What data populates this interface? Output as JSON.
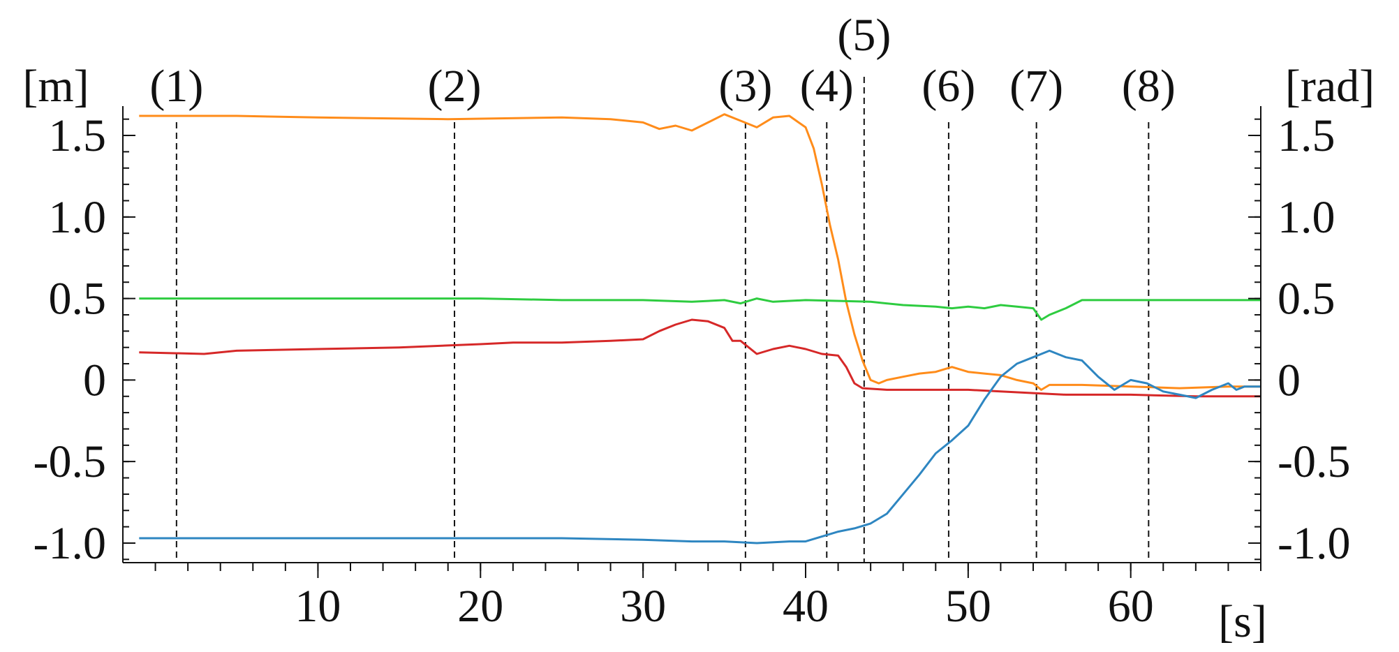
{
  "chart_data": {
    "type": "line",
    "left_axis_unit": "[m]",
    "right_axis_unit": "[rad]",
    "x_unit": "[s]",
    "xlim": [
      -2,
      68
    ],
    "ylim": [
      -1.12,
      1.68
    ],
    "grid": false,
    "y_ticks": [
      {
        "value": 1.5,
        "label": "1.5"
      },
      {
        "value": 1.0,
        "label": "1.0"
      },
      {
        "value": 0.5,
        "label": "0.5"
      },
      {
        "value": 0,
        "label": "0"
      },
      {
        "value": -0.5,
        "label": "-0.5"
      },
      {
        "value": -1.0,
        "label": "-1.0"
      }
    ],
    "x_ticks": [
      {
        "value": 10,
        "label": "10"
      },
      {
        "value": 20,
        "label": "20"
      },
      {
        "value": 30,
        "label": "30"
      },
      {
        "value": 40,
        "label": "40"
      },
      {
        "value": 50,
        "label": "50"
      },
      {
        "value": 60,
        "label": "60"
      }
    ],
    "events": [
      {
        "label": "(1)",
        "x": 1.3
      },
      {
        "label": "(2)",
        "x": 18.4
      },
      {
        "label": "(3)",
        "x": 36.3
      },
      {
        "label": "(4)",
        "x": 41.3
      },
      {
        "label": "(5)",
        "x": 43.6
      },
      {
        "label": "(6)",
        "x": 48.8
      },
      {
        "label": "(7)",
        "x": 54.2
      },
      {
        "label": "(8)",
        "x": 61.1
      }
    ],
    "series": [
      {
        "color": "#ff8c1a",
        "points": [
          [
            -1,
            1.62
          ],
          [
            5,
            1.62
          ],
          [
            10,
            1.61
          ],
          [
            18,
            1.6
          ],
          [
            25,
            1.61
          ],
          [
            28,
            1.6
          ],
          [
            30,
            1.58
          ],
          [
            31,
            1.54
          ],
          [
            32,
            1.56
          ],
          [
            33,
            1.53
          ],
          [
            34,
            1.58
          ],
          [
            35,
            1.63
          ],
          [
            36,
            1.59
          ],
          [
            37,
            1.55
          ],
          [
            38,
            1.61
          ],
          [
            39,
            1.62
          ],
          [
            40,
            1.55
          ],
          [
            40.5,
            1.42
          ],
          [
            41,
            1.2
          ],
          [
            41.5,
            0.95
          ],
          [
            42,
            0.74
          ],
          [
            42.5,
            0.48
          ],
          [
            43,
            0.28
          ],
          [
            43.5,
            0.12
          ],
          [
            44,
            0.0
          ],
          [
            44.5,
            -0.02
          ],
          [
            45,
            0.0
          ],
          [
            46,
            0.02
          ],
          [
            47,
            0.04
          ],
          [
            48,
            0.05
          ],
          [
            49,
            0.08
          ],
          [
            50,
            0.05
          ],
          [
            51,
            0.04
          ],
          [
            52,
            0.03
          ],
          [
            53,
            0.0
          ],
          [
            54,
            -0.02
          ],
          [
            54.5,
            -0.06
          ],
          [
            55,
            -0.03
          ],
          [
            57,
            -0.03
          ],
          [
            60,
            -0.04
          ],
          [
            63,
            -0.05
          ],
          [
            66,
            -0.04
          ],
          [
            68,
            -0.04
          ]
        ]
      },
      {
        "color": "#2ecc40",
        "points": [
          [
            -1,
            0.5
          ],
          [
            10,
            0.5
          ],
          [
            20,
            0.5
          ],
          [
            25,
            0.49
          ],
          [
            30,
            0.49
          ],
          [
            33,
            0.48
          ],
          [
            35,
            0.49
          ],
          [
            36,
            0.47
          ],
          [
            37,
            0.5
          ],
          [
            38,
            0.48
          ],
          [
            40,
            0.49
          ],
          [
            44,
            0.48
          ],
          [
            46,
            0.46
          ],
          [
            48,
            0.45
          ],
          [
            49,
            0.44
          ],
          [
            50,
            0.45
          ],
          [
            51,
            0.44
          ],
          [
            52,
            0.46
          ],
          [
            53,
            0.45
          ],
          [
            54,
            0.44
          ],
          [
            54.5,
            0.37
          ],
          [
            55,
            0.4
          ],
          [
            56,
            0.44
          ],
          [
            57,
            0.49
          ],
          [
            60,
            0.49
          ],
          [
            68,
            0.49
          ]
        ]
      },
      {
        "color": "#d62828",
        "points": [
          [
            -1,
            0.17
          ],
          [
            3,
            0.16
          ],
          [
            5,
            0.18
          ],
          [
            10,
            0.19
          ],
          [
            15,
            0.2
          ],
          [
            20,
            0.22
          ],
          [
            22,
            0.23
          ],
          [
            25,
            0.23
          ],
          [
            28,
            0.24
          ],
          [
            30,
            0.25
          ],
          [
            31,
            0.3
          ],
          [
            32,
            0.34
          ],
          [
            33,
            0.37
          ],
          [
            34,
            0.36
          ],
          [
            35,
            0.32
          ],
          [
            35.5,
            0.24
          ],
          [
            36,
            0.24
          ],
          [
            37,
            0.16
          ],
          [
            38,
            0.19
          ],
          [
            39,
            0.21
          ],
          [
            40,
            0.19
          ],
          [
            41,
            0.16
          ],
          [
            42,
            0.15
          ],
          [
            42.5,
            0.08
          ],
          [
            43,
            -0.02
          ],
          [
            43.5,
            -0.05
          ],
          [
            45,
            -0.06
          ],
          [
            48,
            -0.06
          ],
          [
            50,
            -0.06
          ],
          [
            52,
            -0.07
          ],
          [
            54,
            -0.08
          ],
          [
            56,
            -0.09
          ],
          [
            60,
            -0.09
          ],
          [
            64,
            -0.1
          ],
          [
            68,
            -0.1
          ]
        ]
      },
      {
        "color": "#2e86c1",
        "points": [
          [
            -1,
            -0.97
          ],
          [
            5,
            -0.97
          ],
          [
            10,
            -0.97
          ],
          [
            20,
            -0.97
          ],
          [
            25,
            -0.97
          ],
          [
            30,
            -0.98
          ],
          [
            33,
            -0.99
          ],
          [
            35,
            -0.99
          ],
          [
            37,
            -1.0
          ],
          [
            39,
            -0.99
          ],
          [
            40,
            -0.99
          ],
          [
            41,
            -0.96
          ],
          [
            42,
            -0.93
          ],
          [
            43,
            -0.91
          ],
          [
            44,
            -0.88
          ],
          [
            45,
            -0.82
          ],
          [
            46,
            -0.7
          ],
          [
            47,
            -0.58
          ],
          [
            48,
            -0.45
          ],
          [
            49,
            -0.37
          ],
          [
            50,
            -0.28
          ],
          [
            51,
            -0.12
          ],
          [
            52,
            0.02
          ],
          [
            53,
            0.1
          ],
          [
            54,
            0.14
          ],
          [
            55,
            0.18
          ],
          [
            56,
            0.14
          ],
          [
            57,
            0.12
          ],
          [
            58,
            0.02
          ],
          [
            59,
            -0.06
          ],
          [
            60,
            0.0
          ],
          [
            61,
            -0.02
          ],
          [
            62,
            -0.07
          ],
          [
            63,
            -0.09
          ],
          [
            64,
            -0.11
          ],
          [
            65,
            -0.06
          ],
          [
            66,
            -0.02
          ],
          [
            66.5,
            -0.06
          ],
          [
            67,
            -0.04
          ],
          [
            68,
            -0.04
          ]
        ]
      }
    ]
  }
}
